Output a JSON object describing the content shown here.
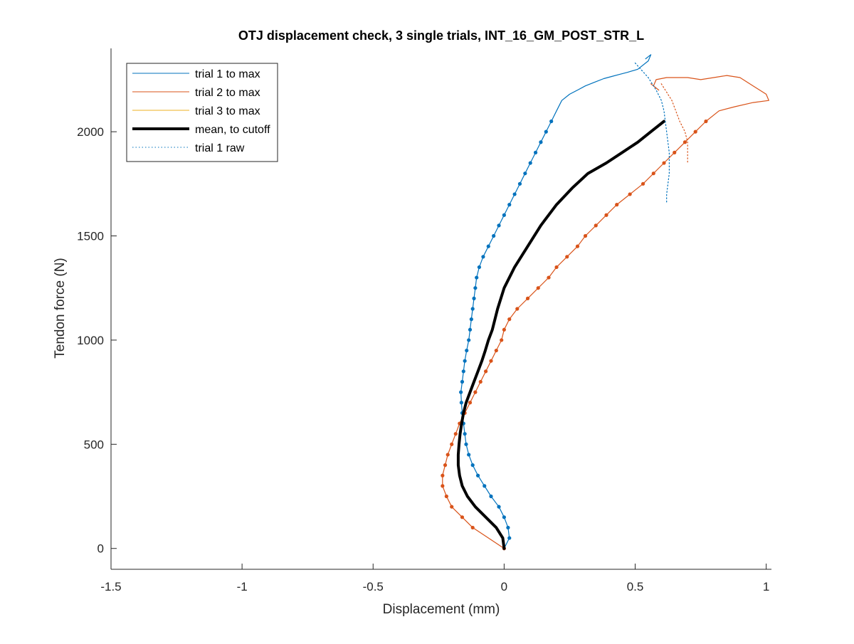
{
  "chart_data": {
    "type": "line",
    "title": "OTJ displacement check, 3 single trials, INT_16_GM_POST_STR_L",
    "xlabel": "Displacement (mm)",
    "ylabel": "Tendon force (N)",
    "xlim": [
      -1.5,
      1.02
    ],
    "ylim": [
      -100,
      2400
    ],
    "xticks": [
      -1.5,
      -1,
      -0.5,
      0,
      0.5,
      1
    ],
    "xtick_labels": [
      "-1.5",
      "-1",
      "-0.5",
      "0",
      "0.5",
      "1"
    ],
    "yticks": [
      0,
      500,
      1000,
      1500,
      2000
    ],
    "ytick_labels": [
      "0",
      "500",
      "1000",
      "1500",
      "2000"
    ],
    "grid": false,
    "legend_position": "top-left",
    "legend": [
      {
        "label": "trial 1 to max",
        "color": "#0072BD",
        "style": "solid",
        "width": 1
      },
      {
        "label": "trial 2 to max",
        "color": "#D95319",
        "style": "solid",
        "width": 1
      },
      {
        "label": "trial 3 to max",
        "color": "#EDB120",
        "style": "solid",
        "width": 1
      },
      {
        "label": "mean, to cutoff",
        "color": "#000000",
        "style": "solid",
        "width": 4
      },
      {
        "label": "trial 1 raw",
        "color": "#0072BD",
        "style": "dotted",
        "width": 1
      }
    ],
    "series": [
      {
        "name": "trial 1 to max",
        "color": "#0072BD",
        "style": "solid",
        "x": [
          0.0,
          0.02,
          0.015,
          0.0,
          -0.02,
          -0.05,
          -0.075,
          -0.1,
          -0.12,
          -0.135,
          -0.145,
          -0.15,
          -0.155,
          -0.16,
          -0.163,
          -0.165,
          -0.16,
          -0.155,
          -0.15,
          -0.143,
          -0.135,
          -0.13,
          -0.125,
          -0.12,
          -0.115,
          -0.11,
          -0.105,
          -0.095,
          -0.08,
          -0.06,
          -0.04,
          -0.02,
          0.0,
          0.02,
          0.04,
          0.06,
          0.08,
          0.1,
          0.12,
          0.14,
          0.16,
          0.18,
          0.2,
          0.22,
          0.25,
          0.28,
          0.31,
          0.35,
          0.38,
          0.41,
          0.44,
          0.47,
          0.51,
          0.55,
          0.56,
          0.55,
          0.54
        ],
        "y": [
          0,
          50,
          100,
          150,
          200,
          250,
          300,
          350,
          400,
          450,
          500,
          550,
          600,
          650,
          700,
          750,
          800,
          850,
          900,
          950,
          1000,
          1050,
          1100,
          1150,
          1200,
          1250,
          1300,
          1350,
          1400,
          1450,
          1500,
          1550,
          1600,
          1650,
          1700,
          1750,
          1800,
          1850,
          1900,
          1950,
          2000,
          2050,
          2100,
          2150,
          2180,
          2200,
          2220,
          2240,
          2255,
          2265,
          2275,
          2285,
          2300,
          2340,
          2370,
          2360,
          2350
        ]
      },
      {
        "name": "trial 2 to max",
        "color": "#D95319",
        "style": "solid",
        "x": [
          0.0,
          -0.12,
          -0.16,
          -0.2,
          -0.22,
          -0.235,
          -0.235,
          -0.225,
          -0.215,
          -0.2,
          -0.185,
          -0.17,
          -0.15,
          -0.13,
          -0.11,
          -0.09,
          -0.07,
          -0.05,
          -0.03,
          -0.01,
          0.0,
          0.02,
          0.05,
          0.09,
          0.13,
          0.17,
          0.2,
          0.24,
          0.28,
          0.31,
          0.35,
          0.39,
          0.43,
          0.48,
          0.53,
          0.57,
          0.61,
          0.65,
          0.69,
          0.73,
          0.77,
          0.82,
          0.88,
          0.95,
          1.01,
          1.0,
          0.95,
          0.9,
          0.85,
          0.8,
          0.75,
          0.7,
          0.62,
          0.58,
          0.57,
          0.59,
          0.56
        ],
        "y": [
          0,
          100,
          150,
          200,
          250,
          300,
          350,
          400,
          450,
          500,
          550,
          600,
          650,
          700,
          750,
          800,
          850,
          900,
          950,
          1000,
          1050,
          1100,
          1150,
          1200,
          1250,
          1300,
          1350,
          1400,
          1450,
          1500,
          1550,
          1600,
          1650,
          1700,
          1750,
          1800,
          1850,
          1900,
          1950,
          2000,
          2050,
          2100,
          2120,
          2140,
          2150,
          2180,
          2220,
          2260,
          2270,
          2260,
          2250,
          2260,
          2260,
          2250,
          2220,
          2200,
          2230
        ]
      },
      {
        "name": "mean, to cutoff",
        "color": "#000000",
        "style": "solid",
        "x": [
          0.0,
          -0.005,
          -0.03,
          -0.07,
          -0.11,
          -0.14,
          -0.16,
          -0.17,
          -0.175,
          -0.175,
          -0.172,
          -0.168,
          -0.162,
          -0.155,
          -0.145,
          -0.13,
          -0.115,
          -0.1,
          -0.085,
          -0.072,
          -0.06,
          -0.045,
          -0.025,
          0.0,
          0.04,
          0.09,
          0.14,
          0.2,
          0.26,
          0.32,
          0.39,
          0.45,
          0.51,
          0.56,
          0.61
        ],
        "y": [
          0,
          50,
          100,
          150,
          200,
          250,
          300,
          350,
          400,
          450,
          500,
          550,
          600,
          650,
          700,
          750,
          800,
          850,
          900,
          950,
          1000,
          1050,
          1150,
          1250,
          1350,
          1450,
          1550,
          1650,
          1730,
          1800,
          1850,
          1900,
          1950,
          2000,
          2050
        ]
      },
      {
        "name": "trial 1 raw",
        "color": "#0072BD",
        "style": "dotted",
        "x": [
          0.5,
          0.55,
          0.58,
          0.6,
          0.61,
          0.62,
          0.63,
          0.63,
          0.62,
          0.62
        ],
        "y": [
          2330,
          2260,
          2200,
          2150,
          2100,
          2000,
          1900,
          1800,
          1700,
          1660
        ]
      },
      {
        "name": "",
        "color": "#D95319",
        "style": "dotted",
        "x": [
          0.6,
          0.64,
          0.67,
          0.69,
          0.7,
          0.7,
          0.7
        ],
        "y": [
          2230,
          2150,
          2050,
          2000,
          1950,
          1900,
          1850
        ]
      }
    ]
  }
}
